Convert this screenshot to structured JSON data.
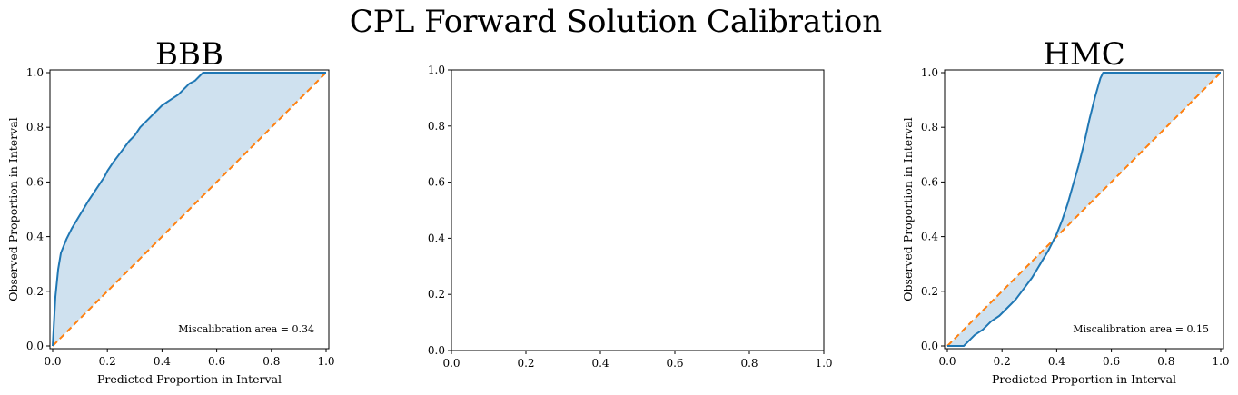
{
  "figure": {
    "suptitle": "CPL Forward Solution Calibration"
  },
  "chart_data": [
    {
      "type": "line",
      "title": "BBB",
      "xlabel": "Predicted Proportion in Interval",
      "ylabel": "Observed Proportion in Interval",
      "xlim": [
        0,
        1
      ],
      "ylim": [
        0,
        1
      ],
      "xticks": [
        "0.0",
        "0.2",
        "0.4",
        "0.6",
        "0.8",
        "1.0"
      ],
      "yticks": [
        "0.0",
        "0.2",
        "0.4",
        "0.6",
        "0.8",
        "1.0"
      ],
      "grid": false,
      "annotation": "Miscalibration area = 0.34",
      "colors": {
        "curve": "#1f77b4",
        "fill": "#cfe1ef",
        "ideal": "#ff7f0e"
      },
      "series": [
        {
          "x": [
            0.0,
            0.01,
            0.02,
            0.03,
            0.05,
            0.07,
            0.1,
            0.13,
            0.15,
            0.17,
            0.19,
            0.2,
            0.22,
            0.25,
            0.28,
            0.3,
            0.32,
            0.35,
            0.38,
            0.4,
            0.43,
            0.46,
            0.48,
            0.5,
            0.52,
            0.54,
            0.55,
            0.6,
            0.7,
            0.8,
            0.9,
            1.0
          ],
          "y": [
            0.0,
            0.18,
            0.28,
            0.34,
            0.39,
            0.43,
            0.48,
            0.53,
            0.56,
            0.59,
            0.62,
            0.64,
            0.67,
            0.71,
            0.75,
            0.77,
            0.8,
            0.83,
            0.86,
            0.88,
            0.9,
            0.92,
            0.94,
            0.96,
            0.97,
            0.99,
            1.0,
            1.0,
            1.0,
            1.0,
            1.0,
            1.0
          ]
        },
        {
          "x": [
            0,
            1
          ],
          "y": [
            0,
            1
          ]
        }
      ]
    },
    {
      "type": "line",
      "title": "",
      "xlabel": "",
      "ylabel": "",
      "xlim": [
        0,
        1
      ],
      "ylim": [
        0,
        1
      ],
      "xticks": [
        "0.0",
        "0.2",
        "0.4",
        "0.6",
        "0.8",
        "1.0"
      ],
      "yticks": [
        "0.0",
        "0.2",
        "0.4",
        "0.6",
        "0.8",
        "1.0"
      ],
      "grid": false,
      "series": []
    },
    {
      "type": "line",
      "title": "HMC",
      "xlabel": "Predicted Proportion in Interval",
      "ylabel": "Observed Proportion in Interval",
      "xlim": [
        0,
        1
      ],
      "ylim": [
        0,
        1
      ],
      "xticks": [
        "0.0",
        "0.2",
        "0.4",
        "0.6",
        "0.8",
        "1.0"
      ],
      "yticks": [
        "0.0",
        "0.2",
        "0.4",
        "0.6",
        "0.8",
        "1.0"
      ],
      "grid": false,
      "annotation": "Miscalibration area = 0.15",
      "colors": {
        "curve": "#1f77b4",
        "fill": "#cfe1ef",
        "ideal": "#ff7f0e"
      },
      "series": [
        {
          "x": [
            0.0,
            0.02,
            0.04,
            0.06,
            0.08,
            0.1,
            0.13,
            0.16,
            0.19,
            0.22,
            0.25,
            0.28,
            0.31,
            0.34,
            0.37,
            0.4,
            0.42,
            0.44,
            0.46,
            0.48,
            0.5,
            0.52,
            0.54,
            0.56,
            0.57,
            0.58,
            0.6,
            0.7,
            0.8,
            0.9,
            1.0
          ],
          "y": [
            0.0,
            0.0,
            0.0,
            0.0,
            0.02,
            0.04,
            0.06,
            0.09,
            0.11,
            0.14,
            0.17,
            0.21,
            0.25,
            0.3,
            0.35,
            0.41,
            0.46,
            0.52,
            0.59,
            0.66,
            0.74,
            0.83,
            0.91,
            0.98,
            1.0,
            1.0,
            1.0,
            1.0,
            1.0,
            1.0,
            1.0
          ]
        },
        {
          "x": [
            0,
            1
          ],
          "y": [
            0,
            1
          ]
        }
      ]
    }
  ]
}
